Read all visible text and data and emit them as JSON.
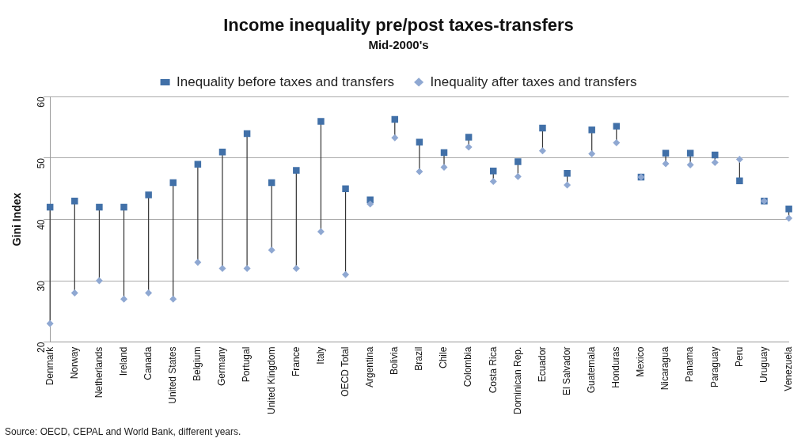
{
  "chart_data": {
    "type": "scatter",
    "title": "Income inequality pre/post taxes-transfers",
    "subtitle": "Mid-2000's",
    "ylabel": "Gini Index",
    "categories": [
      "Denmark",
      "Norway",
      "Netherlands",
      "Ireland",
      "Canada",
      "United States",
      "Belgium",
      "Germany",
      "Portugal",
      "United Kingdom",
      "France",
      "Italy",
      "OECD Total",
      "Argentina",
      "Bolivia",
      "Brazil",
      "Chile",
      "Colombia",
      "Costa Rica",
      "Dominican Rep.",
      "Ecuador",
      "El Salvador",
      "Guatemala",
      "Honduras",
      "Mexico",
      "Nicaragua",
      "Panama",
      "Paraguay",
      "Peru",
      "Uruguay",
      "Venezuela"
    ],
    "series": [
      {
        "name": "Inequality before taxes and transfers",
        "color": "#4170a8",
        "marker": "square",
        "values": [
          42,
          43,
          42,
          42,
          44,
          46,
          49,
          51,
          54,
          46,
          48,
          56,
          45,
          43.2,
          56.3,
          52.6,
          50.9,
          53.4,
          47.9,
          49.4,
          54.9,
          47.5,
          54.6,
          55.2,
          46.9,
          50.8,
          50.8,
          50.5,
          46.3,
          43,
          41.7
        ]
      },
      {
        "name": "Inequality after taxes and transfers",
        "color": "#8fa8d2",
        "marker": "diamond",
        "values": [
          23,
          28,
          30,
          27,
          28,
          27,
          33,
          32,
          32,
          35,
          32,
          38,
          31,
          42.5,
          53.3,
          47.8,
          48.5,
          51.8,
          46.2,
          47,
          51.2,
          45.6,
          50.7,
          52.5,
          46.9,
          49.1,
          48.9,
          49.3,
          49.8,
          43,
          40.2
        ]
      }
    ],
    "ylim": [
      20,
      60
    ],
    "yticks": [
      20,
      30,
      40,
      50,
      60
    ],
    "grid": "y",
    "legend": "top",
    "annotations": [
      "Source: OECD, CEPAL and World Bank, different years."
    ]
  }
}
